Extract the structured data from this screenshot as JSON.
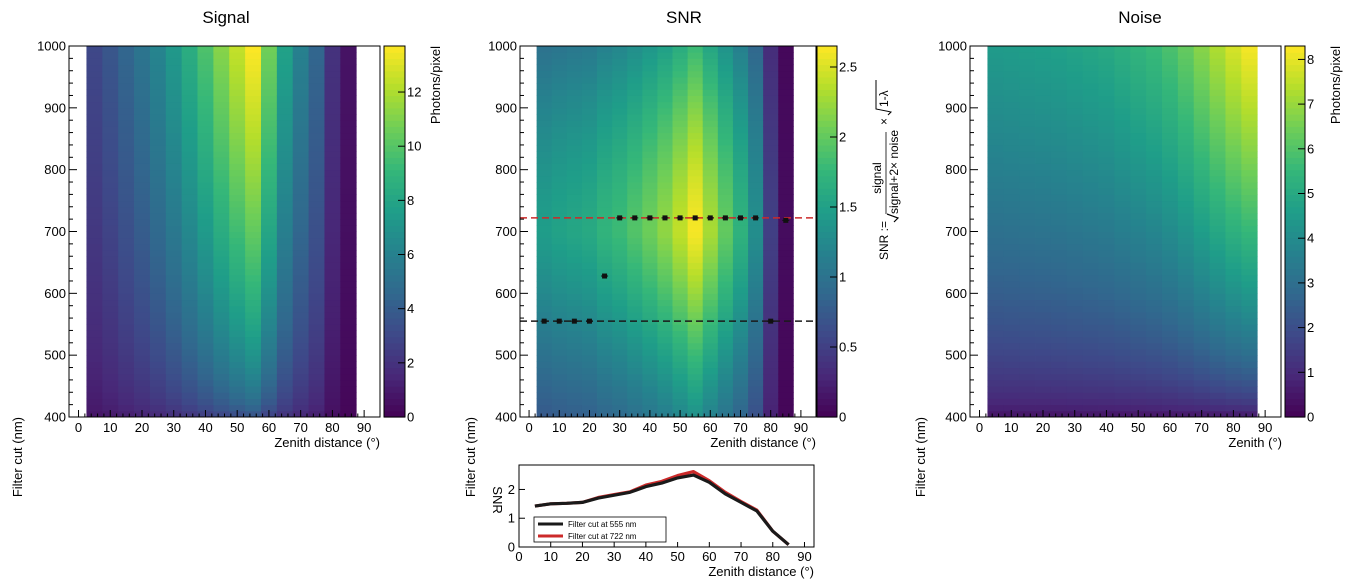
{
  "colors": {
    "viridis": [
      "#440154",
      "#482878",
      "#3e4989",
      "#31688e",
      "#26828e",
      "#1f9e89",
      "#35b779",
      "#6ece58",
      "#b5de2b",
      "#fde725"
    ],
    "ref_555": "#1a1a1a",
    "ref_722": "#cc2a2a",
    "marker": "#111111"
  },
  "chart_data": [
    {
      "id": "signal",
      "type": "heatmap",
      "title": "Signal",
      "xlabel": "Zenith distance (°)",
      "ylabel": "Filter cut (nm)",
      "zlabel": "Photons/pixel",
      "xlim": [
        -3,
        95
      ],
      "ylim": [
        400,
        1000
      ],
      "zlim": [
        0,
        13.7
      ],
      "xticks": [
        "0",
        "10",
        "20",
        "30",
        "40",
        "50",
        "60",
        "70",
        "80",
        "90"
      ],
      "yticks": [
        "400",
        "500",
        "600",
        "700",
        "800",
        "900",
        "1000"
      ],
      "zticks": [
        "0",
        "2",
        "4",
        "6",
        "8",
        "10",
        "12"
      ],
      "x": [
        5,
        10,
        15,
        20,
        25,
        30,
        35,
        40,
        45,
        50,
        55,
        60,
        65,
        70,
        75,
        80,
        85
      ],
      "peak_top": [
        3.0,
        3.7,
        4.5,
        5.3,
        6.2,
        7.3,
        8.5,
        9.8,
        11.2,
        12.5,
        13.7,
        10.7,
        7.8,
        6.0,
        4.5,
        2.0,
        0.7
      ],
      "ratio_bottom": 0.22
    },
    {
      "id": "snr",
      "type": "heatmap",
      "title": "SNR",
      "xlabel": "Zenith distance (°)",
      "ylabel": "Filter cut (nm)",
      "zlabel": "SNR := signal / √(signal+2× noise) × √(1-λ)",
      "zlabel_parts": {
        "lhs": "SNR :=",
        "num": "signal",
        "den": "signal+2× noise",
        "times": "×",
        "lam": "1-λ"
      },
      "xlim": [
        -3,
        95
      ],
      "ylim": [
        400,
        1000
      ],
      "zlim": [
        0,
        2.65
      ],
      "xticks": [
        "0",
        "10",
        "20",
        "30",
        "40",
        "50",
        "60",
        "70",
        "80",
        "90"
      ],
      "yticks": [
        "400",
        "500",
        "600",
        "700",
        "800",
        "900",
        "1000"
      ],
      "zticks": [
        "0",
        "0.5",
        "1",
        "1.5",
        "2",
        "2.5"
      ],
      "x": [
        5,
        10,
        15,
        20,
        25,
        30,
        35,
        40,
        45,
        50,
        55,
        60,
        65,
        70,
        75,
        80,
        85
      ],
      "peak": [
        1.46,
        1.52,
        1.56,
        1.6,
        1.72,
        1.8,
        1.92,
        2.05,
        2.2,
        2.4,
        2.62,
        2.3,
        2.0,
        1.7,
        1.3,
        0.5,
        0.08
      ],
      "optimal_cut_nm": [
        555,
        555,
        555,
        555,
        628,
        722,
        722,
        722,
        722,
        722,
        722,
        722,
        722,
        722,
        722,
        555,
        718
      ],
      "ref_lines_nm": [
        555,
        722
      ]
    },
    {
      "id": "noise",
      "type": "heatmap",
      "title": "Noise",
      "xlabel": "Zenith (°)",
      "ylabel": "Filter cut (nm)",
      "zlabel": "Photons/pixel",
      "xlim": [
        -3,
        95
      ],
      "ylim": [
        400,
        1000
      ],
      "zlim": [
        0,
        8.3
      ],
      "xticks": [
        "0",
        "10",
        "20",
        "30",
        "40",
        "50",
        "60",
        "70",
        "80",
        "90"
      ],
      "yticks": [
        "400",
        "500",
        "600",
        "700",
        "800",
        "900",
        "1000"
      ],
      "zticks": [
        "0",
        "1",
        "2",
        "3",
        "4",
        "5",
        "6",
        "7",
        "8"
      ],
      "x": [
        5,
        10,
        15,
        20,
        25,
        30,
        35,
        40,
        45,
        50,
        55,
        60,
        65,
        70,
        75,
        80,
        85
      ],
      "top": [
        4.5,
        4.55,
        4.6,
        4.65,
        4.7,
        4.8,
        4.9,
        5.0,
        5.2,
        5.4,
        5.6,
        5.9,
        6.3,
        6.8,
        7.3,
        7.8,
        8.2
      ],
      "bottom_value": 0.3
    },
    {
      "id": "snr-profile",
      "type": "line",
      "xlabel": "Zenith  distance (°)",
      "ylabel": "SNR",
      "xlim": [
        0,
        93
      ],
      "ylim": [
        0,
        2.85
      ],
      "xticks": [
        "0",
        "10",
        "20",
        "30",
        "40",
        "50",
        "60",
        "70",
        "80",
        "90"
      ],
      "yticks": [
        "0",
        "1",
        "2"
      ],
      "series": [
        {
          "name": "Filter cut at 555 nm",
          "x": [
            5,
            10,
            15,
            20,
            25,
            30,
            35,
            40,
            45,
            50,
            55,
            60,
            65,
            70,
            75,
            80,
            85
          ],
          "y": [
            1.42,
            1.5,
            1.52,
            1.55,
            1.7,
            1.8,
            1.9,
            2.1,
            2.22,
            2.4,
            2.5,
            2.25,
            1.85,
            1.55,
            1.25,
            0.55,
            0.08
          ]
        },
        {
          "name": "Filter cut at 722 nm",
          "x": [
            5,
            10,
            15,
            20,
            25,
            30,
            35,
            40,
            45,
            50,
            55,
            60,
            65,
            70,
            75,
            80,
            85
          ],
          "y": [
            1.42,
            1.5,
            1.52,
            1.55,
            1.72,
            1.82,
            1.92,
            2.15,
            2.28,
            2.48,
            2.62,
            2.3,
            1.9,
            1.58,
            1.28,
            0.55,
            0.08
          ]
        }
      ]
    }
  ]
}
